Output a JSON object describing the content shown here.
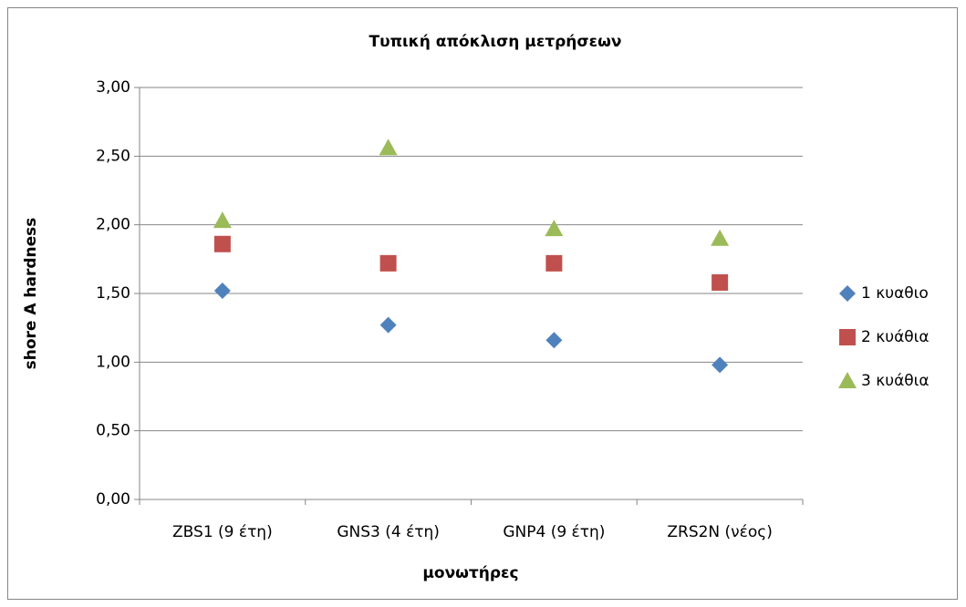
{
  "chart_data": {
    "type": "line",
    "title": "Τυπική απόκλιση μετρήσεων",
    "x_label": "μονωτήρες",
    "y_label": "shore A hardness",
    "categories": [
      "ZBS1 (9 έτη)",
      "GNS3 (4 έτη)",
      "GNP4 (9 έτη)",
      "ZRS2N (νέος)"
    ],
    "series": [
      {
        "name": "1 κυαθιο",
        "color": "#4f81bd",
        "marker": "diamond",
        "values": [
          1.52,
          1.27,
          1.16,
          0.98
        ]
      },
      {
        "name": "2 κυάθια",
        "color": "#c0504d",
        "marker": "square",
        "values": [
          1.86,
          1.72,
          1.72,
          1.58
        ]
      },
      {
        "name": "3 κυάθια",
        "color": "#9bbb59",
        "marker": "triangle",
        "values": [
          2.03,
          2.56,
          1.97,
          1.9
        ]
      }
    ],
    "ylim": [
      0,
      3
    ],
    "yticks": [
      {
        "value": 0,
        "label": "0,00"
      },
      {
        "value": 0.5,
        "label": "0,50"
      },
      {
        "value": 1,
        "label": "1,00"
      },
      {
        "value": 1.5,
        "label": "1,50"
      },
      {
        "value": 2,
        "label": "2,00"
      },
      {
        "value": 2.5,
        "label": "2,50"
      },
      {
        "value": 3,
        "label": "3,00"
      }
    ],
    "grid": true,
    "show_lines": false,
    "legend": "right"
  }
}
